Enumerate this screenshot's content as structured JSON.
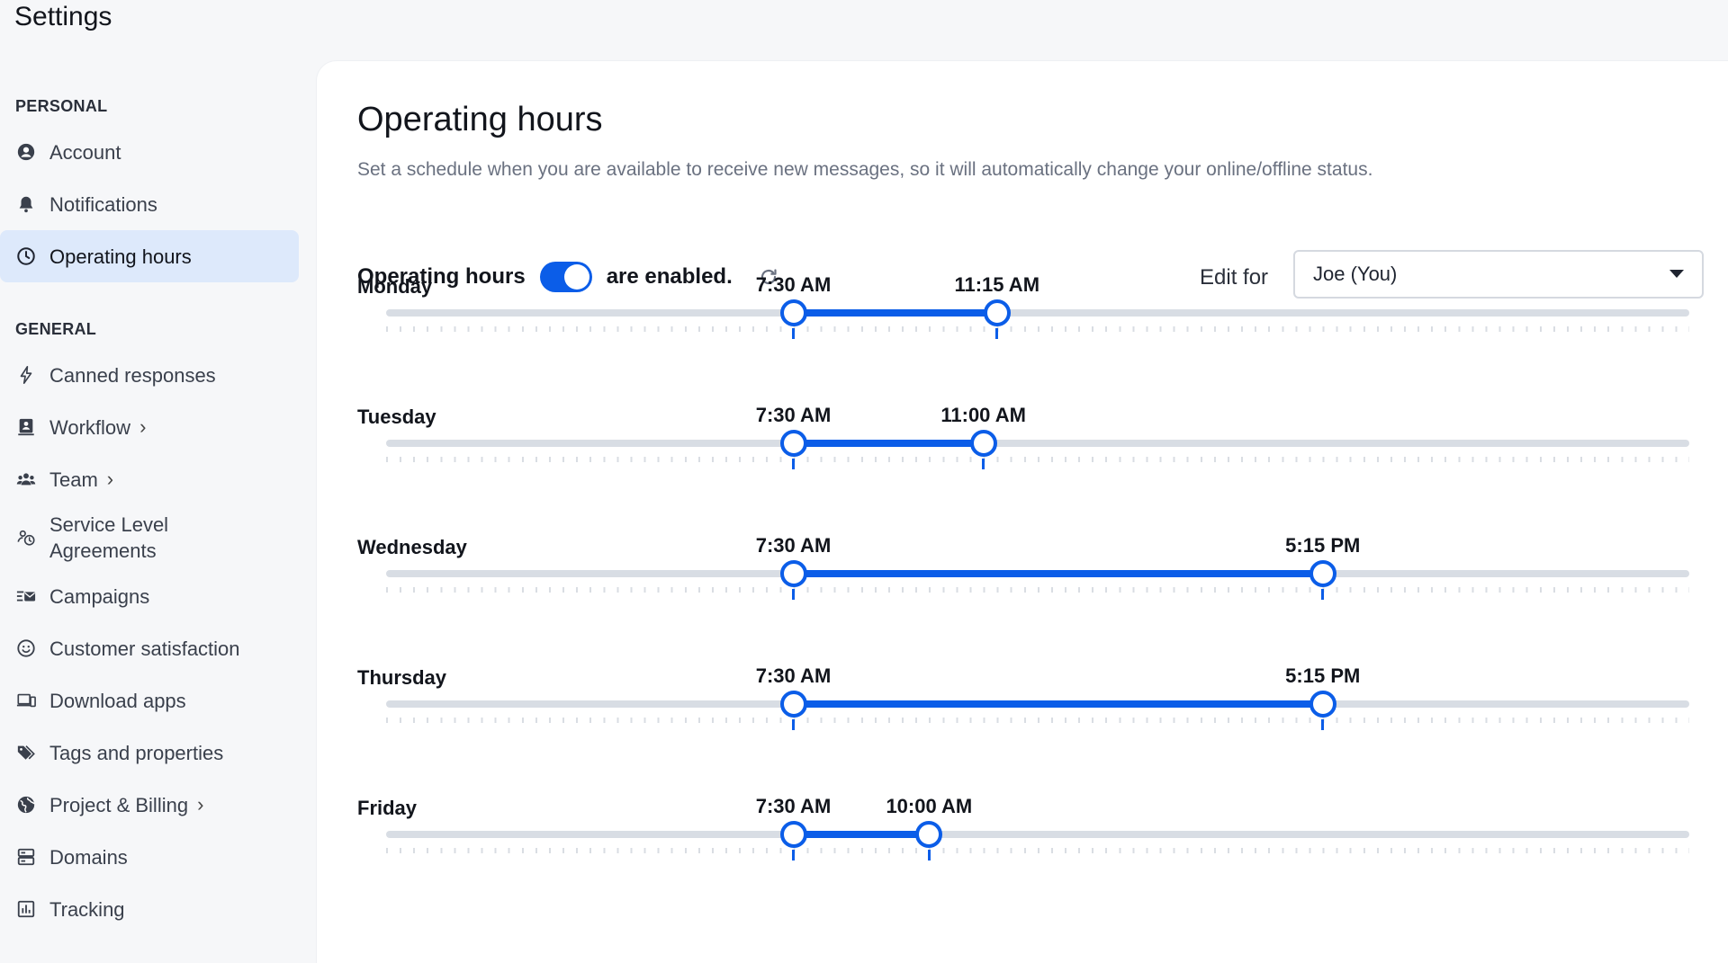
{
  "app": {
    "title": "Settings"
  },
  "sidebar": {
    "personal_label": "PERSONAL",
    "general_label": "GENERAL",
    "personal_items": [
      {
        "label": "Account",
        "icon": "user-circle-icon"
      },
      {
        "label": "Notifications",
        "icon": "bell-icon"
      },
      {
        "label": "Operating hours",
        "icon": "clock-icon",
        "active": true
      }
    ],
    "general_items": [
      {
        "label": "Canned responses",
        "icon": "bolt-icon"
      },
      {
        "label": "Workflow",
        "icon": "workflow-icon",
        "chevron": true
      },
      {
        "label": "Team",
        "icon": "team-icon",
        "chevron": true
      },
      {
        "label": "Service Level Agreements",
        "icon": "sla-icon"
      },
      {
        "label": "Campaigns",
        "icon": "campaigns-icon"
      },
      {
        "label": "Customer satisfaction",
        "icon": "smiley-icon"
      },
      {
        "label": "Download apps",
        "icon": "devices-icon"
      },
      {
        "label": "Tags and properties",
        "icon": "tags-icon"
      },
      {
        "label": "Project & Billing",
        "icon": "globe-icon",
        "chevron": true
      },
      {
        "label": "Domains",
        "icon": "server-icon"
      },
      {
        "label": "Tracking",
        "icon": "chart-icon"
      }
    ]
  },
  "main": {
    "title": "Operating hours",
    "description": "Set a schedule when you are available to receive new messages, so it will automatically change your online/offline status.",
    "toggle_label_before": "Operating hours",
    "toggle_label_after": "are enabled.",
    "toggle_on": true,
    "edit_for_label": "Edit for",
    "edit_for_value": "Joe (You)"
  },
  "schedule": {
    "range_start_hour": 0,
    "range_end_hour": 24,
    "accent": "#0b5de8",
    "days": [
      {
        "name": "Monday",
        "start": "7:30 AM",
        "end": "11:15 AM",
        "start_hour": 7.5,
        "end_hour": 11.25
      },
      {
        "name": "Tuesday",
        "start": "7:30 AM",
        "end": "11:00 AM",
        "start_hour": 7.5,
        "end_hour": 11
      },
      {
        "name": "Wednesday",
        "start": "7:30 AM",
        "end": "5:15 PM",
        "start_hour": 7.5,
        "end_hour": 17.25
      },
      {
        "name": "Thursday",
        "start": "7:30 AM",
        "end": "5:15 PM",
        "start_hour": 7.5,
        "end_hour": 17.25
      },
      {
        "name": "Friday",
        "start": "7:30 AM",
        "end": "10:00 AM",
        "start_hour": 7.5,
        "end_hour": 10
      }
    ]
  }
}
